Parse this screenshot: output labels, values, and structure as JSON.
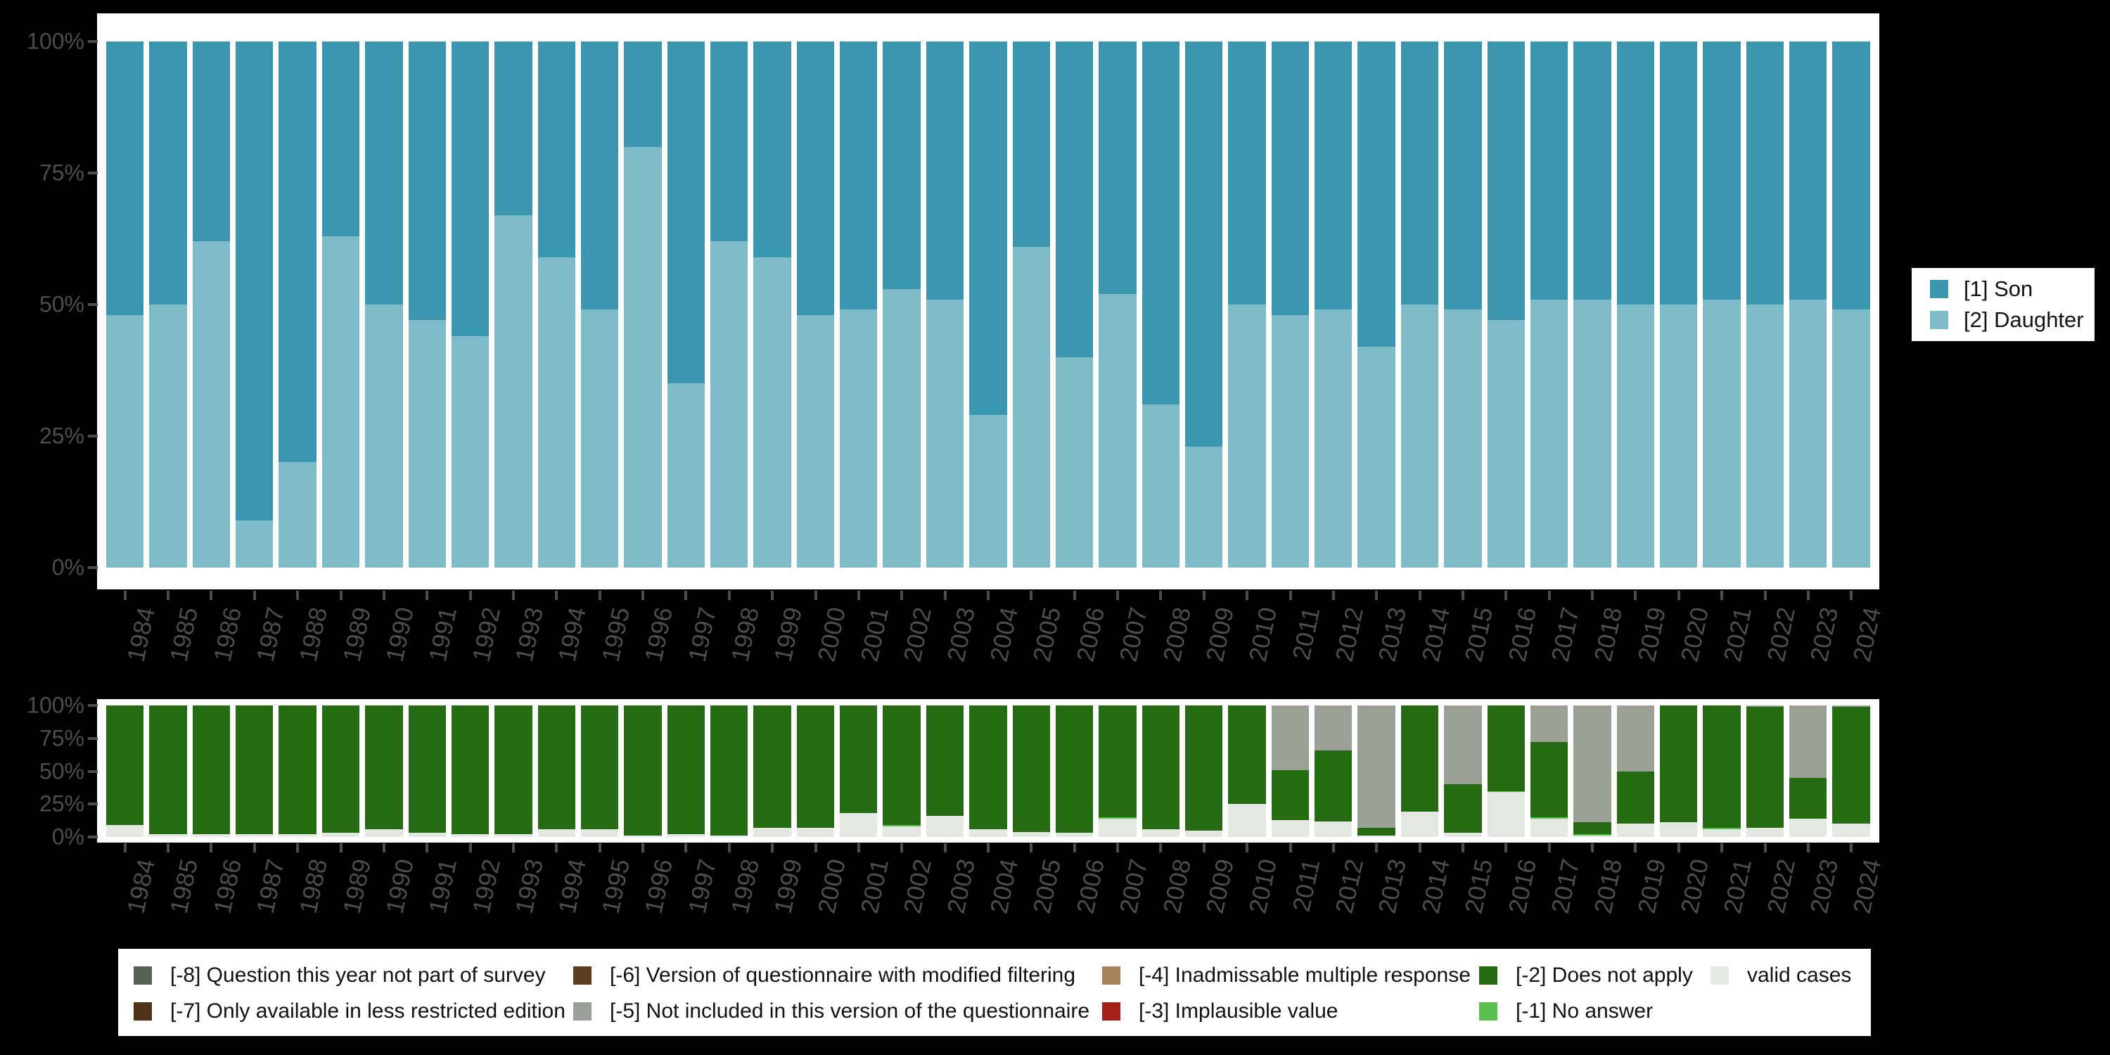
{
  "colors": {
    "background": "#000000",
    "panel": "#ffffff",
    "axis_text": "#4d4d4d",
    "tick_mark": "#4d4d4d",
    "legend_text": "#111111",
    "son": "#3a96ae",
    "daughter": "#7fbcca",
    "does_not_apply": "#256b12",
    "no_answer": "#5abf4c",
    "not_included": "#9aa096",
    "valid_cases": "#e3e8e1",
    "question_not_part": "#596156",
    "less_restricted": "#4f3118",
    "modified_filtering": "#5e3c1f",
    "inadmissable": "#a6835a",
    "implausible": "#a22015"
  },
  "chart_data": [
    {
      "type": "bar",
      "stacked": true,
      "units": "percent",
      "title": "",
      "xlabel": "",
      "ylabel": "",
      "ylim": [
        0,
        100
      ],
      "grid": false,
      "y_ticks": [
        "100%",
        "75%",
        "50%",
        "25%",
        "0%"
      ],
      "categories": [
        "1984",
        "1985",
        "1986",
        "1987",
        "1988",
        "1989",
        "1990",
        "1991",
        "1992",
        "1993",
        "1994",
        "1995",
        "1996",
        "1997",
        "1998",
        "1999",
        "2000",
        "2001",
        "2002",
        "2003",
        "2004",
        "2005",
        "2006",
        "2007",
        "2008",
        "2009",
        "2010",
        "2011",
        "2012",
        "2013",
        "2014",
        "2015",
        "2016",
        "2017",
        "2018",
        "2019",
        "2020",
        "2021",
        "2022",
        "2023",
        "2024"
      ],
      "series": [
        {
          "name": "[1] Son",
          "color": "#3a96ae",
          "values": [
            52,
            50,
            38,
            91,
            80,
            37,
            50,
            53,
            56,
            33,
            41,
            51,
            20,
            65,
            38,
            41,
            52,
            51,
            47,
            49,
            71,
            39,
            60,
            48,
            69,
            77,
            50,
            52,
            51,
            58,
            50,
            51,
            53,
            49,
            49,
            50,
            50,
            49,
            50,
            49,
            51
          ]
        },
        {
          "name": "[2] Daughter",
          "color": "#7fbcca",
          "values": [
            48,
            50,
            62,
            9,
            20,
            63,
            50,
            47,
            44,
            67,
            59,
            49,
            80,
            35,
            62,
            59,
            48,
            49,
            53,
            51,
            29,
            61,
            40,
            52,
            31,
            23,
            50,
            48,
            49,
            42,
            50,
            49,
            47,
            51,
            51,
            50,
            50,
            51,
            50,
            51,
            49
          ]
        }
      ],
      "legend_position": "right"
    },
    {
      "type": "bar",
      "stacked": true,
      "units": "percent",
      "title": "",
      "xlabel": "",
      "ylabel": "",
      "ylim": [
        0,
        100
      ],
      "grid": false,
      "y_ticks": [
        "100%",
        "75%",
        "50%",
        "25%",
        "0%"
      ],
      "categories": [
        "1984",
        "1985",
        "1986",
        "1987",
        "1988",
        "1989",
        "1990",
        "1991",
        "1992",
        "1993",
        "1994",
        "1995",
        "1996",
        "1997",
        "1998",
        "1999",
        "2000",
        "2001",
        "2002",
        "2003",
        "2004",
        "2005",
        "2006",
        "2007",
        "2008",
        "2009",
        "2010",
        "2011",
        "2012",
        "2013",
        "2014",
        "2015",
        "2016",
        "2017",
        "2018",
        "2019",
        "2020",
        "2021",
        "2022",
        "2023",
        "2024"
      ],
      "series": [
        {
          "name": "[-5] Not included in this version of the questionnaire",
          "color": "#9aa096",
          "values": [
            0,
            0,
            0,
            0,
            0,
            0,
            0,
            0,
            0,
            0,
            0,
            0,
            0,
            0,
            0,
            0,
            0,
            0,
            0,
            0,
            0,
            0,
            0,
            0,
            0,
            0,
            0,
            49,
            34,
            93,
            0,
            60,
            0,
            28,
            89,
            50,
            0,
            0,
            1,
            55,
            1
          ]
        },
        {
          "name": "[-2] Does not apply",
          "color": "#256b12",
          "values": [
            91,
            98,
            98,
            98,
            98,
            97,
            94,
            97,
            98,
            98,
            94,
            94,
            99,
            98,
            99,
            93,
            93,
            82,
            91,
            84,
            94,
            96,
            97,
            85,
            94,
            95,
            75,
            38,
            54,
            6,
            81,
            37,
            65,
            57,
            9,
            40,
            89,
            93,
            92,
            31,
            89
          ]
        },
        {
          "name": "[-1] No answer",
          "color": "#5abf4c",
          "values": [
            0,
            0,
            0,
            0,
            0,
            0,
            0,
            0,
            0,
            0,
            0,
            0,
            0,
            0,
            0,
            0,
            0,
            0,
            1,
            0,
            0,
            0,
            0,
            1,
            0,
            0,
            0,
            0,
            0,
            0,
            0,
            0,
            1,
            1,
            1,
            0,
            0,
            1,
            0,
            0,
            0
          ]
        },
        {
          "name": "valid cases",
          "color": "#e3e8e1",
          "values": [
            9,
            2,
            2,
            2,
            2,
            3,
            6,
            3,
            2,
            2,
            6,
            6,
            1,
            2,
            1,
            7,
            7,
            18,
            8,
            16,
            6,
            4,
            3,
            14,
            6,
            5,
            25,
            13,
            12,
            1,
            19,
            3,
            34,
            14,
            1,
            10,
            11,
            6,
            7,
            14,
            10
          ]
        }
      ],
      "legend_position": "bottom"
    }
  ],
  "right_legend": {
    "items": [
      {
        "label": "[1] Son",
        "color": "#3a96ae"
      },
      {
        "label": "[2] Daughter",
        "color": "#7fbcca"
      }
    ]
  },
  "bottom_legend": {
    "rows": [
      [
        {
          "label": "[-8] Question this year not part of survey",
          "color": "#596156",
          "x": 22
        },
        {
          "label": "[-6] Version of questionnaire with modified filtering",
          "color": "#5e3c1f",
          "x": 647
        },
        {
          "label": "[-4] Inadmissable multiple response",
          "color": "#a6835a",
          "x": 1399
        },
        {
          "label": "[-2] Does not apply",
          "color": "#256b12",
          "x": 1935
        },
        {
          "label": "valid cases",
          "color": "#e3e8e1",
          "x": 2264
        }
      ],
      [
        {
          "label": "[-7] Only available in less restricted edition",
          "color": "#4f3118",
          "x": 22
        },
        {
          "label": "[-5] Not included in this version of the questionnaire",
          "color": "#9aa096",
          "x": 647
        },
        {
          "label": "[-3] Implausible value",
          "color": "#a22015",
          "x": 1399
        },
        {
          "label": "[-1] No answer",
          "color": "#5abf4c",
          "x": 1935
        }
      ]
    ]
  }
}
